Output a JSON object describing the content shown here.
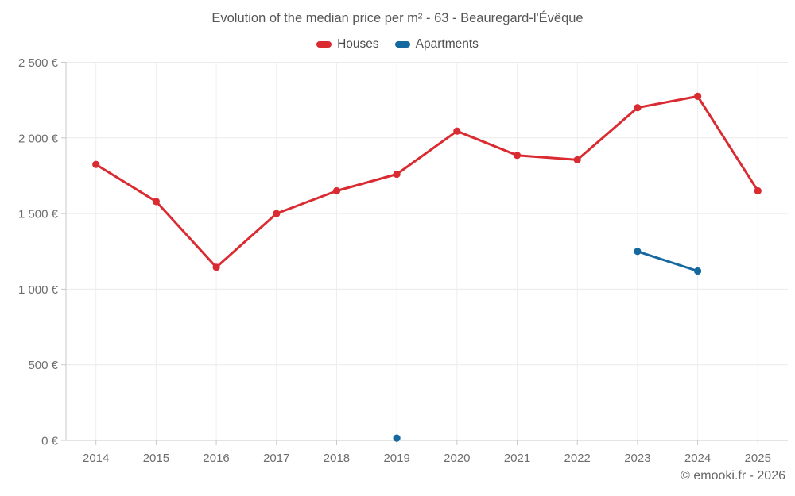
{
  "footer": {
    "credit": "© emooki.fr - 2026"
  },
  "chart_data": {
    "type": "line",
    "title": "Evolution of the median price per m² - 63 - Beauregard-l'Évêque",
    "categories": [
      "2014",
      "2015",
      "2016",
      "2017",
      "2018",
      "2019",
      "2020",
      "2021",
      "2022",
      "2023",
      "2024",
      "2025"
    ],
    "series": [
      {
        "name": "Houses",
        "color": "#d92b31",
        "values": [
          1825,
          1580,
          1145,
          1500,
          1650,
          1760,
          2045,
          1885,
          1855,
          2200,
          2275,
          1650
        ]
      },
      {
        "name": "Apartments",
        "color": "#16699e",
        "values": [
          null,
          null,
          null,
          null,
          null,
          15,
          null,
          null,
          null,
          1250,
          1120,
          null
        ]
      }
    ],
    "xlabel": "",
    "ylabel": "",
    "ylim": [
      0,
      2500
    ],
    "yticks": [
      0,
      500,
      1000,
      1500,
      2000,
      2500
    ],
    "ytick_labels": [
      "0 €",
      "500 €",
      "1 000 €",
      "1 500 €",
      "2 000 €",
      "2 500 €"
    ],
    "grid": true,
    "legend_position": "top",
    "currency": "€",
    "unit": "price per m²"
  }
}
